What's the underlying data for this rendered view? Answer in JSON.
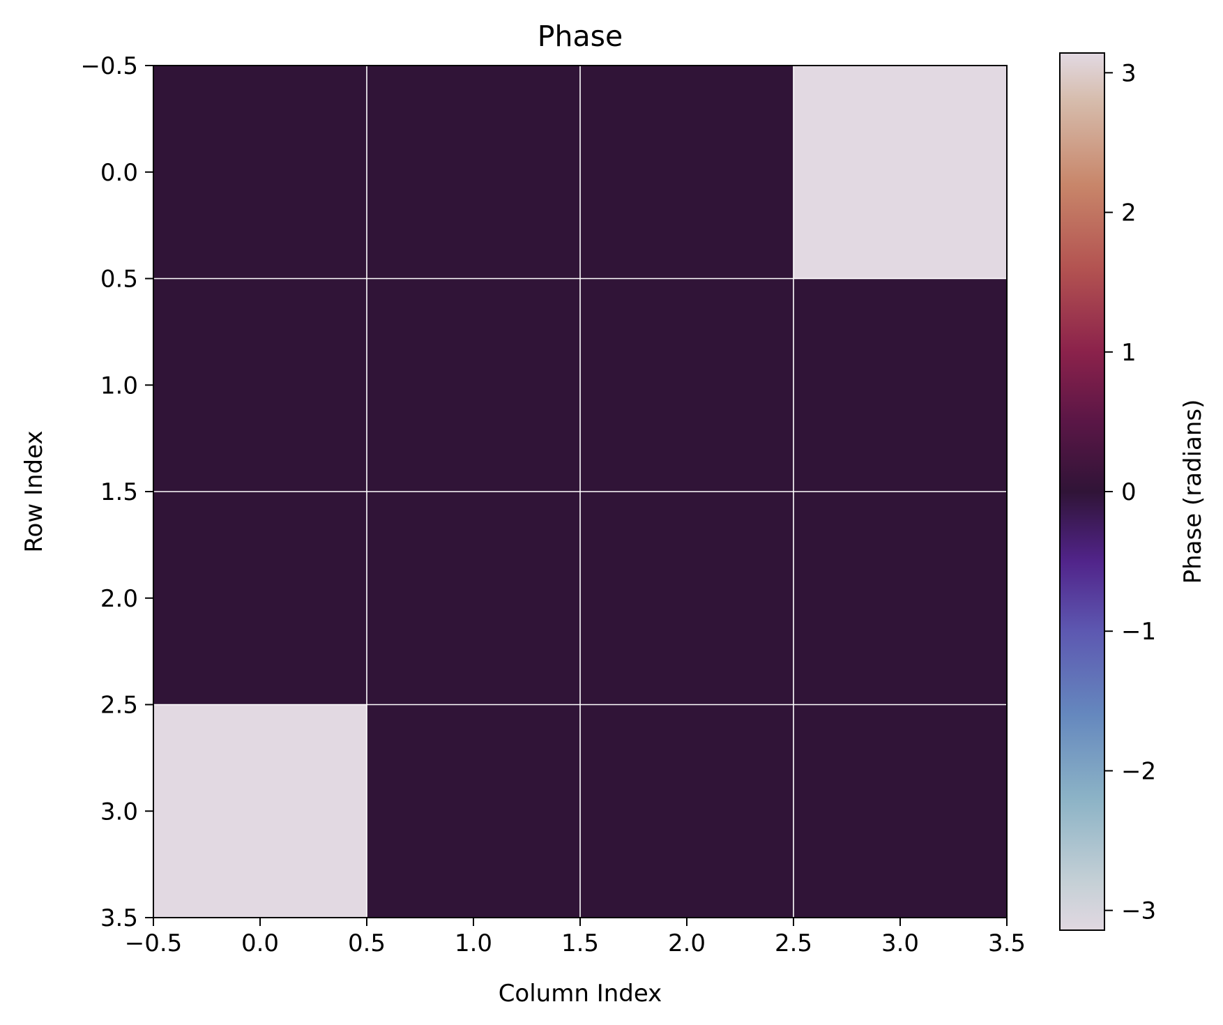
{
  "chart_data": {
    "type": "heatmap",
    "title": "Phase",
    "xlabel": "Column Index",
    "ylabel": "Row Index",
    "colorbar_label": "Phase (radians)",
    "xlim": [
      -0.5,
      3.5
    ],
    "ylim": [
      3.5,
      -0.5
    ],
    "x_ticks": [
      -0.5,
      0.0,
      0.5,
      1.0,
      1.5,
      2.0,
      2.5,
      3.0,
      3.5
    ],
    "x_tick_labels": [
      "−0.5",
      "0.0",
      "0.5",
      "1.0",
      "1.5",
      "2.0",
      "2.5",
      "3.0",
      "3.5"
    ],
    "y_ticks": [
      -0.5,
      0.0,
      0.5,
      1.0,
      1.5,
      2.0,
      2.5,
      3.0,
      3.5
    ],
    "y_tick_labels": [
      "−0.5",
      "0.0",
      "0.5",
      "1.0",
      "1.5",
      "2.0",
      "2.5",
      "3.0",
      "3.5"
    ],
    "grid": true,
    "grid_color": "#ffffff",
    "rows": [
      0,
      1,
      2,
      3
    ],
    "columns": [
      0,
      1,
      2,
      3
    ],
    "values": [
      [
        0,
        0,
        0,
        3.14159
      ],
      [
        0,
        0,
        0,
        0
      ],
      [
        0,
        0,
        0,
        0
      ],
      [
        3.14159,
        0,
        0,
        0
      ]
    ],
    "colormap": "twilight_shifted",
    "colorbar": {
      "vmin": -3.14159,
      "vmax": 3.14159,
      "ticks": [
        -3,
        -2,
        -1,
        0,
        1,
        2,
        3
      ],
      "tick_labels": [
        "−3",
        "−2",
        "−1",
        "0",
        "1",
        "2",
        "3"
      ],
      "stops": [
        {
          "v": -3.14159,
          "color": "#e1d8e1"
        },
        {
          "v": -2.8,
          "color": "#c5d0d6"
        },
        {
          "v": -2.2,
          "color": "#8cb3c6"
        },
        {
          "v": -1.6,
          "color": "#6588be"
        },
        {
          "v": -1.0,
          "color": "#5d58b1"
        },
        {
          "v": -0.5,
          "color": "#51248a"
        },
        {
          "v": 0.0,
          "color": "#301437"
        },
        {
          "v": 0.5,
          "color": "#5a1646"
        },
        {
          "v": 1.0,
          "color": "#8b224b"
        },
        {
          "v": 1.6,
          "color": "#b35351"
        },
        {
          "v": 2.2,
          "color": "#c8866a"
        },
        {
          "v": 2.8,
          "color": "#d6bcac"
        },
        {
          "v": 3.14159,
          "color": "#e2d9e2"
        }
      ]
    }
  }
}
